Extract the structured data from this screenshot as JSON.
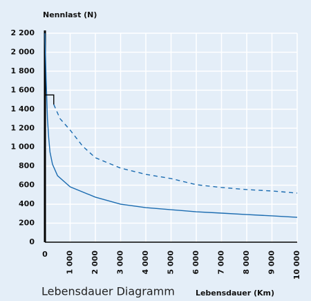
{
  "chart_data": {
    "type": "line",
    "ylabel": "Nennlast (N)",
    "xlabel": "Lebensdauer (Km)",
    "caption": "Lebensdauer Diagramm",
    "xlim": [
      0,
      10000
    ],
    "ylim": [
      0,
      2200
    ],
    "xticks": [
      0,
      {
        "value": 1000,
        "label": "1 000"
      },
      {
        "value": 2000,
        "label": "2 000"
      },
      {
        "value": 3000,
        "label": "3 000"
      },
      {
        "value": 4000,
        "label": "4 000"
      },
      {
        "value": 5000,
        "label": "5 000"
      },
      {
        "value": 6000,
        "label": "6 000"
      },
      {
        "value": 7000,
        "label": "7 000"
      },
      {
        "value": 8000,
        "label": "8 000"
      },
      {
        "value": 9000,
        "label": "9 000"
      },
      {
        "value": 10000,
        "label": "10 000"
      }
    ],
    "yticks": [
      0,
      200,
      400,
      600,
      800,
      {
        "value": 1000,
        "label": "1 000"
      },
      {
        "value": 1200,
        "label": "1 200"
      },
      {
        "value": 1400,
        "label": "1 400"
      },
      {
        "value": 1600,
        "label": "1 600"
      },
      {
        "value": 1800,
        "label": "1 800"
      },
      {
        "value": 2000,
        "label": "2 000"
      },
      {
        "value": 2200,
        "label": "2 200"
      }
    ],
    "grid": true,
    "series": [
      {
        "color": "#1a6bb0",
        "dashed": false,
        "x": [
          0,
          50,
          100,
          150,
          200,
          300,
          500,
          1000,
          2000,
          3000,
          4000,
          5000,
          6000,
          7000,
          8000,
          9000,
          10000
        ],
        "values": [
          2200,
          1700,
          1300,
          1100,
          950,
          820,
          700,
          583,
          474,
          400,
          364,
          342,
          320,
          306,
          291,
          277,
          262
        ]
      },
      {
        "color": "#1a6bb0",
        "dashed": true,
        "x": [
          350,
          600,
          1000,
          1500,
          2000,
          3000,
          4000,
          5000,
          6000,
          7000,
          8000,
          9000,
          10000
        ],
        "values": [
          1450,
          1300,
          1180,
          1010,
          889,
          780,
          714,
          670,
          605,
          576,
          554,
          539,
          517
        ]
      },
      {
        "color": "#000000",
        "dashed": false,
        "x": [
          0,
          350,
          350
        ],
        "values": [
          1550,
          1550,
          1450
        ]
      }
    ]
  }
}
